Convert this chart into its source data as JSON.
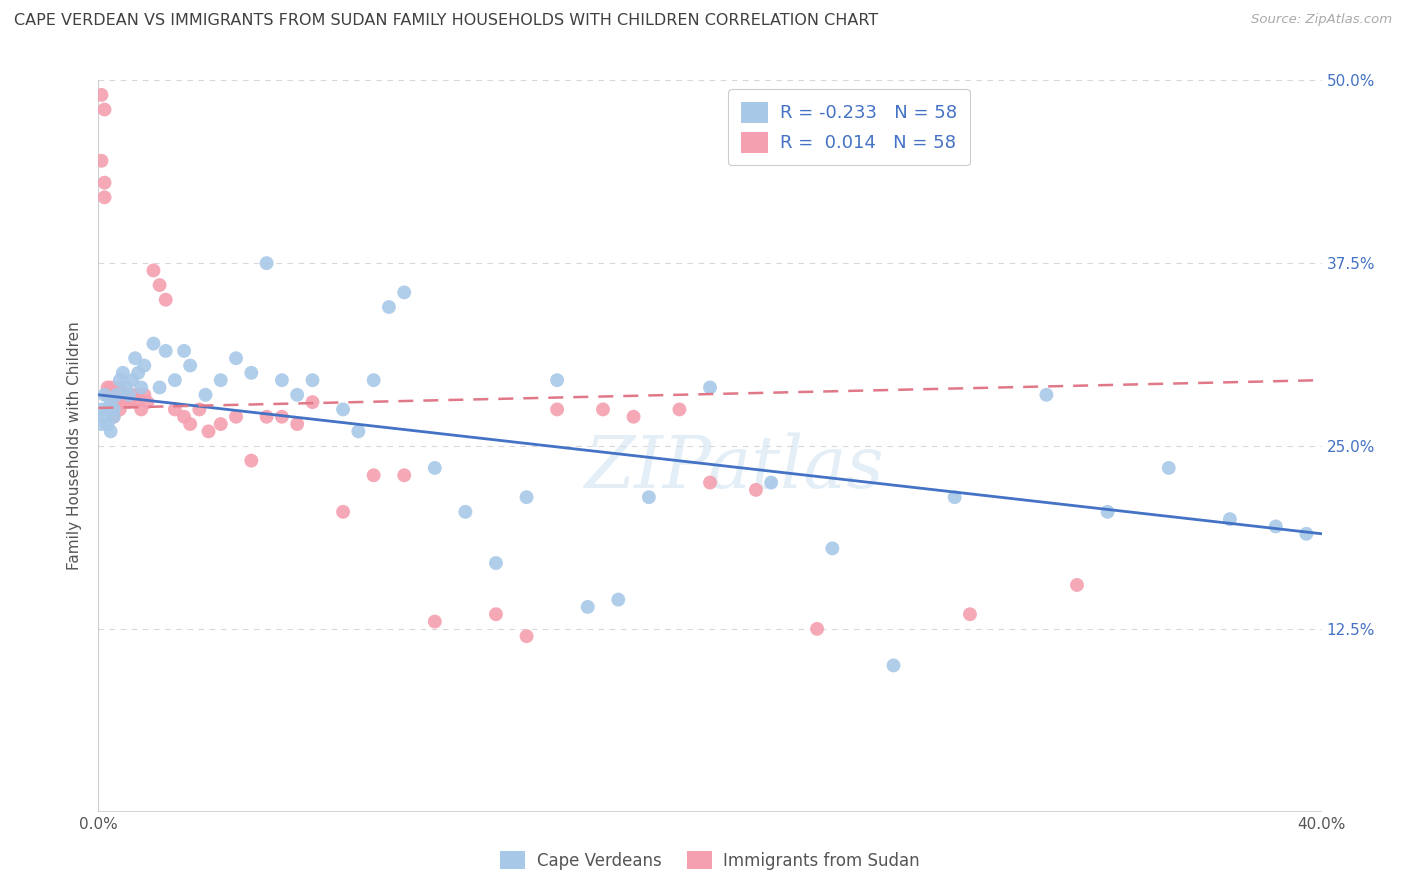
{
  "title": "CAPE VERDEAN VS IMMIGRANTS FROM SUDAN FAMILY HOUSEHOLDS WITH CHILDREN CORRELATION CHART",
  "source": "Source: ZipAtlas.com",
  "ylabel": "Family Households with Children",
  "xlim": [
    0.0,
    0.4
  ],
  "ylim": [
    0.0,
    0.5
  ],
  "legend_label1": "R = -0.233   N = 58",
  "legend_label2": "R =  0.014   N = 58",
  "legend_bottom1": "Cape Verdeans",
  "legend_bottom2": "Immigrants from Sudan",
  "blue_color": "#a8c8e8",
  "pink_color": "#f4a0b0",
  "blue_line_color": "#4472c4",
  "pink_line_color": "#e07888",
  "title_color": "#404040",
  "axis_label_color": "#555555",
  "tick_color_right": "#4472c4",
  "grid_color": "#d8d8d8",
  "watermark": "ZIPatlas",
  "blue_scatter_x": [
    0.001,
    0.001,
    0.002,
    0.002,
    0.003,
    0.003,
    0.004,
    0.004,
    0.005,
    0.005,
    0.006,
    0.007,
    0.008,
    0.009,
    0.01,
    0.011,
    0.012,
    0.013,
    0.014,
    0.015,
    0.018,
    0.02,
    0.022,
    0.025,
    0.028,
    0.03,
    0.035,
    0.04,
    0.045,
    0.05,
    0.055,
    0.06,
    0.065,
    0.07,
    0.08,
    0.085,
    0.09,
    0.095,
    0.1,
    0.11,
    0.12,
    0.13,
    0.14,
    0.15,
    0.16,
    0.17,
    0.18,
    0.2,
    0.22,
    0.24,
    0.26,
    0.28,
    0.31,
    0.33,
    0.35,
    0.37,
    0.385,
    0.395
  ],
  "blue_scatter_y": [
    0.265,
    0.275,
    0.27,
    0.285,
    0.275,
    0.265,
    0.26,
    0.28,
    0.275,
    0.27,
    0.285,
    0.295,
    0.3,
    0.29,
    0.285,
    0.295,
    0.31,
    0.3,
    0.29,
    0.305,
    0.32,
    0.29,
    0.315,
    0.295,
    0.315,
    0.305,
    0.285,
    0.295,
    0.31,
    0.3,
    0.375,
    0.295,
    0.285,
    0.295,
    0.275,
    0.26,
    0.295,
    0.345,
    0.355,
    0.235,
    0.205,
    0.17,
    0.215,
    0.295,
    0.14,
    0.145,
    0.215,
    0.29,
    0.225,
    0.18,
    0.1,
    0.215,
    0.285,
    0.205,
    0.235,
    0.2,
    0.195,
    0.19
  ],
  "pink_scatter_x": [
    0.001,
    0.001,
    0.002,
    0.002,
    0.002,
    0.003,
    0.003,
    0.003,
    0.004,
    0.004,
    0.004,
    0.005,
    0.005,
    0.006,
    0.006,
    0.007,
    0.007,
    0.008,
    0.008,
    0.009,
    0.01,
    0.01,
    0.011,
    0.012,
    0.013,
    0.014,
    0.015,
    0.016,
    0.018,
    0.02,
    0.022,
    0.025,
    0.028,
    0.03,
    0.033,
    0.036,
    0.04,
    0.045,
    0.05,
    0.055,
    0.06,
    0.065,
    0.07,
    0.08,
    0.09,
    0.1,
    0.11,
    0.13,
    0.14,
    0.15,
    0.165,
    0.175,
    0.19,
    0.2,
    0.215,
    0.235,
    0.285,
    0.32
  ],
  "pink_scatter_y": [
    0.49,
    0.445,
    0.48,
    0.43,
    0.42,
    0.29,
    0.285,
    0.285,
    0.29,
    0.285,
    0.285,
    0.285,
    0.27,
    0.285,
    0.28,
    0.29,
    0.275,
    0.285,
    0.28,
    0.285,
    0.285,
    0.28,
    0.285,
    0.28,
    0.285,
    0.275,
    0.285,
    0.28,
    0.37,
    0.36,
    0.35,
    0.275,
    0.27,
    0.265,
    0.275,
    0.26,
    0.265,
    0.27,
    0.24,
    0.27,
    0.27,
    0.265,
    0.28,
    0.205,
    0.23,
    0.23,
    0.13,
    0.135,
    0.12,
    0.275,
    0.275,
    0.27,
    0.275,
    0.225,
    0.22,
    0.125,
    0.135,
    0.155
  ],
  "blue_trend_x0": 0.0,
  "blue_trend_y0": 0.285,
  "blue_trend_x1": 0.4,
  "blue_trend_y1": 0.19,
  "pink_trend_x0": 0.0,
  "pink_trend_y0": 0.276,
  "pink_trend_x1": 0.4,
  "pink_trend_y1": 0.295
}
